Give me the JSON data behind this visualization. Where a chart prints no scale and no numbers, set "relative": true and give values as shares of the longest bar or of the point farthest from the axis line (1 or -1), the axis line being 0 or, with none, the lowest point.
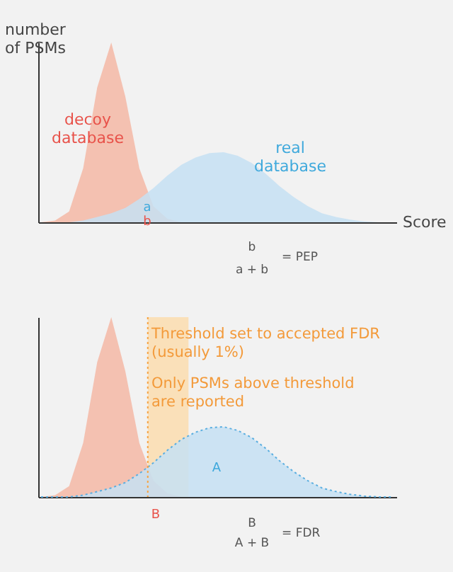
{
  "chart_data": [
    {
      "type": "area",
      "relative": true,
      "xlabel": "Score",
      "ylabel": "number of PSMs",
      "categories": [
        null,
        null,
        null,
        null,
        null,
        null,
        null,
        null,
        null,
        null,
        null,
        null,
        null,
        null,
        null,
        null,
        null,
        null,
        null,
        null,
        null,
        null,
        null,
        null,
        null,
        null
      ],
      "series": [
        {
          "name": "decoy database",
          "color": "#f5b8a6",
          "values": [
            0,
            0.01,
            0.06,
            0.3,
            0.75,
            1,
            0.7,
            0.3,
            0.09,
            0.02,
            0,
            0,
            0,
            0,
            0,
            0,
            0,
            0,
            0,
            0,
            0,
            0,
            0,
            0,
            0,
            0
          ]
        },
        {
          "name": "real database",
          "color": "#c6e1f3",
          "values": [
            0,
            0,
            0,
            0.01,
            0.03,
            0.05,
            0.08,
            0.13,
            0.19,
            0.26,
            0.32,
            0.36,
            0.385,
            0.39,
            0.37,
            0.33,
            0.27,
            0.2,
            0.14,
            0.09,
            0.05,
            0.03,
            0.015,
            0.005,
            0,
            0
          ]
        }
      ],
      "annotations": [
        "a",
        "b",
        "b",
        "a + b",
        "= PEP"
      ]
    },
    {
      "type": "area",
      "relative": true,
      "categories": [
        null,
        null,
        null,
        null,
        null,
        null,
        null,
        null,
        null,
        null,
        null,
        null,
        null,
        null,
        null,
        null,
        null,
        null,
        null,
        null,
        null,
        null,
        null,
        null,
        null,
        null
      ],
      "series": [
        {
          "color": "#f5b8a6",
          "values": [
            0,
            0.01,
            0.06,
            0.3,
            0.75,
            1,
            0.7,
            0.3,
            0.09,
            0.02,
            0,
            0,
            0,
            0,
            0,
            0,
            0,
            0,
            0,
            0,
            0,
            0,
            0,
            0,
            0,
            0
          ]
        },
        {
          "color": "#c6e1f3",
          "line_style": "dotted",
          "values": [
            0,
            0,
            0,
            0.01,
            0.03,
            0.05,
            0.08,
            0.13,
            0.19,
            0.26,
            0.32,
            0.36,
            0.385,
            0.39,
            0.37,
            0.33,
            0.27,
            0.2,
            0.14,
            0.09,
            0.05,
            0.03,
            0.015,
            0.005,
            0,
            0
          ]
        }
      ],
      "annotations": [
        "Threshold set to accepted FDR (usually 1%)",
        "Only PSMs above threshold are reported",
        "A",
        "B",
        "B",
        "A + B",
        "= FDR"
      ]
    }
  ]
}
